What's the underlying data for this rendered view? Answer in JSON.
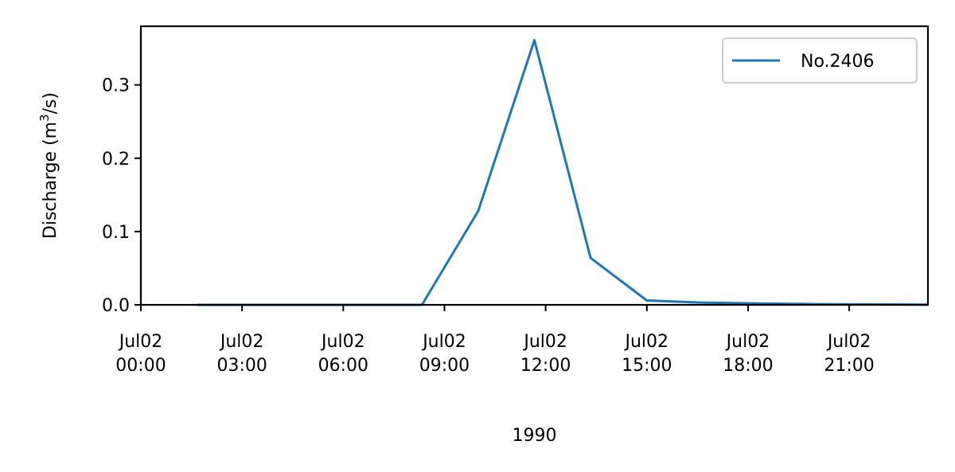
{
  "chart_data": {
    "type": "line",
    "x": [
      "1990-07-02 01:40",
      "1990-07-02 08:20",
      "1990-07-02 10:00",
      "1990-07-02 11:40",
      "1990-07-02 13:20",
      "1990-07-02 15:00",
      "1990-07-02 16:40",
      "1990-07-02 18:20",
      "1990-07-02 20:00",
      "1990-07-02 21:40",
      "1990-07-02 23:20"
    ],
    "series": [
      {
        "name": "No.2406",
        "values": [
          0.0,
          0.0,
          0.128,
          0.361,
          0.064,
          0.006,
          0.003,
          0.002,
          0.001,
          0.0005,
          0.0003
        ],
        "color": "#1f77b4"
      }
    ],
    "xlim": [
      "1990-07-02 00:00",
      "1990-07-02 23:20"
    ],
    "ylim": [
      0.0,
      0.38
    ],
    "xticks": [
      {
        "at": "1990-07-02 00:00",
        "line1": "Jul02",
        "line2": "00:00"
      },
      {
        "at": "1990-07-02 03:00",
        "line1": "Jul02",
        "line2": "03:00"
      },
      {
        "at": "1990-07-02 06:00",
        "line1": "Jul02",
        "line2": "06:00"
      },
      {
        "at": "1990-07-02 09:00",
        "line1": "Jul02",
        "line2": "09:00"
      },
      {
        "at": "1990-07-02 12:00",
        "line1": "Jul02",
        "line2": "12:00"
      },
      {
        "at": "1990-07-02 15:00",
        "line1": "Jul02",
        "line2": "15:00"
      },
      {
        "at": "1990-07-02 18:00",
        "line1": "Jul02",
        "line2": "18:00"
      },
      {
        "at": "1990-07-02 21:00",
        "line1": "Jul02",
        "line2": "21:00"
      }
    ],
    "yticks": [
      {
        "value": 0.0,
        "label": "0.0"
      },
      {
        "value": 0.1,
        "label": "0.1"
      },
      {
        "value": 0.2,
        "label": "0.2"
      },
      {
        "value": 0.3,
        "label": "0.3"
      }
    ],
    "xlabel": "1990",
    "ylabel": {
      "text": "Discharge (m",
      "sup": "3",
      "tail": "/s)"
    },
    "legend_position": "upper right",
    "grid": false
  }
}
